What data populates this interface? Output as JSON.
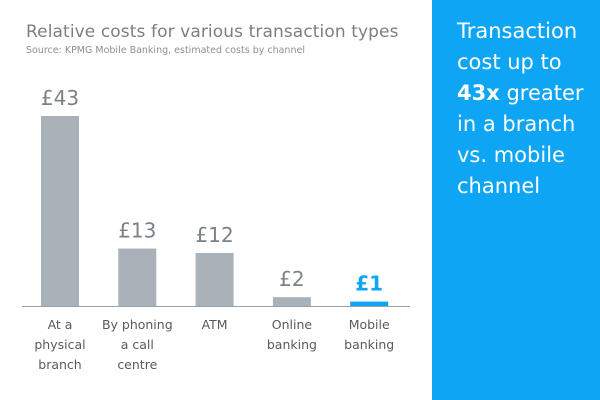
{
  "chart_data": {
    "type": "bar",
    "title": "Relative costs for various transaction types",
    "subtitle": "Source: KPMG Mobile Banking, estimated costs by channel",
    "categories": [
      [
        "At a",
        "physical",
        "branch"
      ],
      [
        "By phoning",
        "a call",
        "centre"
      ],
      [
        "ATM"
      ],
      [
        "Online",
        "banking"
      ],
      [
        "Mobile",
        "banking"
      ]
    ],
    "values": [
      43,
      13,
      12,
      2,
      1
    ],
    "value_labels": [
      "£43",
      "£13",
      "£12",
      "£2",
      "£1"
    ],
    "highlight_index": 4,
    "colors": {
      "bar": "#a9b2b8",
      "highlight": "#0ea5f4",
      "label": "#7a8288",
      "axis": "#9aa1a7"
    },
    "ylim": [
      0,
      43
    ],
    "grid": false,
    "xlabel": "",
    "ylabel": ""
  },
  "side_panel": {
    "background": "#0ea5f4",
    "text_before": "Transaction cost up to ",
    "highlight": "43x",
    "text_after": " greater in a branch vs. mobile channel"
  }
}
